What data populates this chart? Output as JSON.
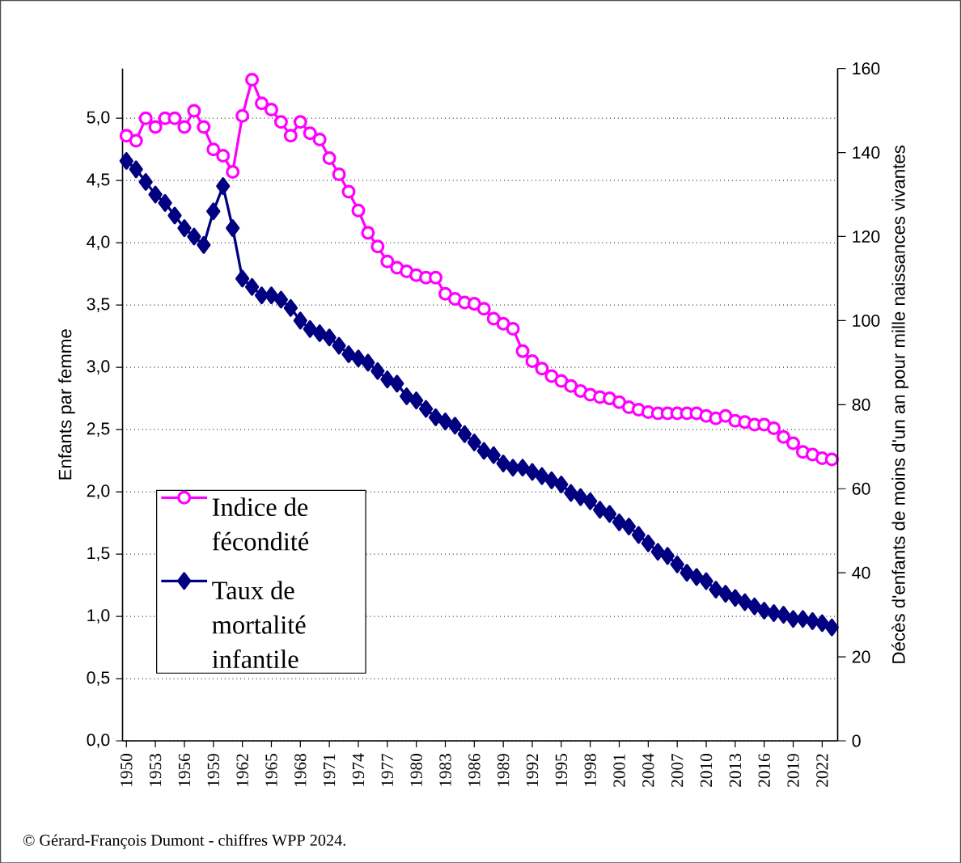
{
  "chart_data": {
    "type": "line",
    "ylabel": "Enfants par femme",
    "y2label": "Décès d'enfants de moins d'un an pour mille naissances vivantes",
    "annotations": [
      "© Gérard-François Dumont - chiffres WPP 2024."
    ],
    "x": [
      1950,
      1951,
      1952,
      1953,
      1954,
      1955,
      1956,
      1957,
      1958,
      1959,
      1960,
      1961,
      1962,
      1963,
      1964,
      1965,
      1966,
      1967,
      1968,
      1969,
      1970,
      1971,
      1972,
      1973,
      1974,
      1975,
      1976,
      1977,
      1978,
      1979,
      1980,
      1981,
      1982,
      1983,
      1984,
      1985,
      1986,
      1987,
      1988,
      1989,
      1990,
      1991,
      1992,
      1993,
      1994,
      1995,
      1996,
      1997,
      1998,
      1999,
      2000,
      2001,
      2002,
      2003,
      2004,
      2005,
      2006,
      2007,
      2008,
      2009,
      2010,
      2011,
      2012,
      2013,
      2014,
      2015,
      2016,
      2017,
      2018,
      2019,
      2020,
      2021,
      2022,
      2023
    ],
    "series": [
      {
        "name": "Indice de fécondité",
        "color": "#ff00ff",
        "marker": "circle",
        "values": [
          4.86,
          4.82,
          5.0,
          4.93,
          5.0,
          5.0,
          4.93,
          5.06,
          4.93,
          4.75,
          4.7,
          4.57,
          5.02,
          5.31,
          5.12,
          5.07,
          4.97,
          4.86,
          4.97,
          4.88,
          4.83,
          4.68,
          4.55,
          4.41,
          4.26,
          4.08,
          3.97,
          3.85,
          3.8,
          3.77,
          3.74,
          3.72,
          3.72,
          3.59,
          3.55,
          3.52,
          3.51,
          3.47,
          3.39,
          3.35,
          3.31,
          3.13,
          3.05,
          2.99,
          2.93,
          2.89,
          2.85,
          2.81,
          2.78,
          2.76,
          2.75,
          2.72,
          2.68,
          2.66,
          2.64,
          2.63,
          2.63,
          2.63,
          2.63,
          2.63,
          2.61,
          2.59,
          2.61,
          2.57,
          2.56,
          2.54,
          2.54,
          2.51,
          2.44,
          2.39,
          2.32,
          2.3,
          2.27,
          2.26
        ]
      },
      {
        "name": "Taux de mortalité infantile",
        "color": "#000080",
        "marker": "diamond",
        "axis": "y2",
        "values": [
          138,
          136,
          133,
          130,
          128,
          125,
          122,
          120,
          118,
          126,
          132,
          122,
          110,
          108,
          106,
          106,
          105,
          103,
          100,
          98,
          97,
          96,
          94,
          92,
          91,
          90,
          88,
          86,
          85,
          82,
          81,
          79,
          77,
          76,
          75,
          73,
          71,
          69,
          68,
          66,
          65,
          65,
          64,
          63,
          62,
          61,
          59,
          58,
          57,
          55,
          54,
          52,
          51,
          49,
          47,
          45,
          44,
          42,
          40,
          39,
          38,
          36,
          35,
          34,
          33,
          32,
          31,
          30.4,
          30,
          29,
          29,
          28.5,
          28,
          27
        ]
      }
    ],
    "xlim": [
      1949.6,
      2023.6
    ],
    "xticks": [
      1950,
      1953,
      1956,
      1959,
      1962,
      1965,
      1968,
      1971,
      1974,
      1977,
      1980,
      1983,
      1986,
      1989,
      1992,
      1995,
      1998,
      2001,
      2004,
      2007,
      2010,
      2013,
      2016,
      2019,
      2022
    ],
    "ylim": [
      0,
      5.4
    ],
    "yticks": [
      {
        "value": 0,
        "label": "0,0"
      },
      {
        "value": 0.5,
        "label": "0,5"
      },
      {
        "value": 1,
        "label": "1,0"
      },
      {
        "value": 1.5,
        "label": "1,5"
      },
      {
        "value": 2,
        "label": "2,0"
      },
      {
        "value": 2.5,
        "label": "2,5"
      },
      {
        "value": 3,
        "label": "3,0"
      },
      {
        "value": 3.5,
        "label": "3,5"
      },
      {
        "value": 4,
        "label": "4,0"
      },
      {
        "value": 4.5,
        "label": "4,5"
      },
      {
        "value": 5,
        "label": "5,0"
      }
    ],
    "y2lim": [
      0,
      160
    ],
    "y2ticks": [
      0,
      20,
      40,
      60,
      80,
      100,
      120,
      140,
      160
    ],
    "grid": "y",
    "legend": "bottom left",
    "line_style": "solid"
  }
}
